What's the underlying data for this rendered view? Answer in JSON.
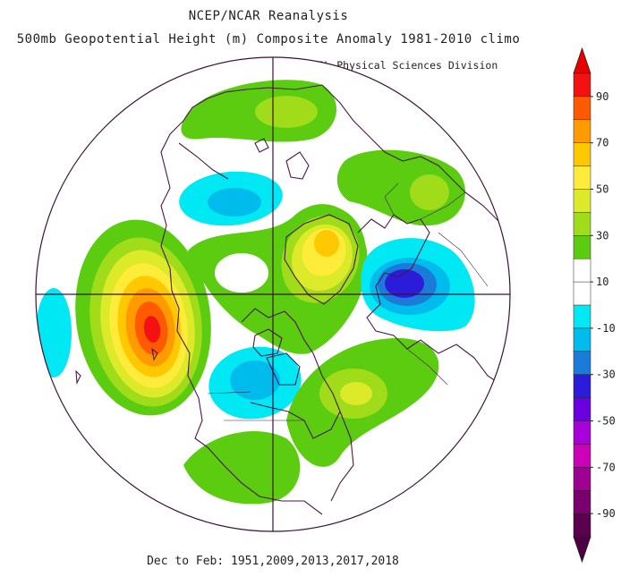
{
  "title_line1": "NCEP/NCAR Reanalysis",
  "title_line2": "500mb Geopotential Height (m) Composite Anomaly 1981-2010 climo",
  "source": "NOAA/ESRL Physical Sciences Division",
  "footer": "Dec to Feb: 1951,2009,2013,2017,2018",
  "map": {
    "projection": "north-polar-stereographic",
    "variable": "500mb geopotential height anomaly",
    "units": "m",
    "anomaly_features": [
      {
        "region": "northeast Pacific / Gulf of Alaska",
        "sign": "positive",
        "peak_m": 80
      },
      {
        "region": "Greenland / Arctic",
        "sign": "positive",
        "peak_m": 50
      },
      {
        "region": "central-western Russia / Siberia",
        "sign": "negative",
        "peak_m": -40
      },
      {
        "region": "central North America",
        "sign": "negative",
        "peak_m": -20
      },
      {
        "region": "western North Atlantic / eastern US",
        "sign": "positive",
        "peak_m": 30
      },
      {
        "region": "Bering Strait / eastern Siberia",
        "sign": "negative",
        "peak_m": -20
      },
      {
        "region": "Siberian Arctic coast",
        "sign": "positive",
        "peak_m": 20
      },
      {
        "region": "Mongolia / northern China",
        "sign": "positive",
        "peak_m": 20
      },
      {
        "region": "Mexico / central America",
        "sign": "positive",
        "peak_m": 10
      },
      {
        "region": "central Pacific",
        "sign": "negative",
        "peak_m": -10
      }
    ]
  },
  "colorbar": {
    "labels": [
      "90",
      "70",
      "50",
      "30",
      "10",
      "-10",
      "-30",
      "-50",
      "-70",
      "-90"
    ],
    "colors": [
      "#f31111",
      "#ff5a00",
      "#ff9a00",
      "#ffc800",
      "#ffec3a",
      "#dcea2a",
      "#a0dc1a",
      "#5ccc10",
      "#ffffff",
      "#ffffff",
      "#00e8f4",
      "#00bcec",
      "#1a7cd8",
      "#2a1cd8",
      "#6a00e0",
      "#a800d8",
      "#cc00b8",
      "#a00090",
      "#7a0070",
      "#5a004e"
    ],
    "cap_top_color": "#e60000",
    "cap_bottom_color": "#4e0044"
  }
}
